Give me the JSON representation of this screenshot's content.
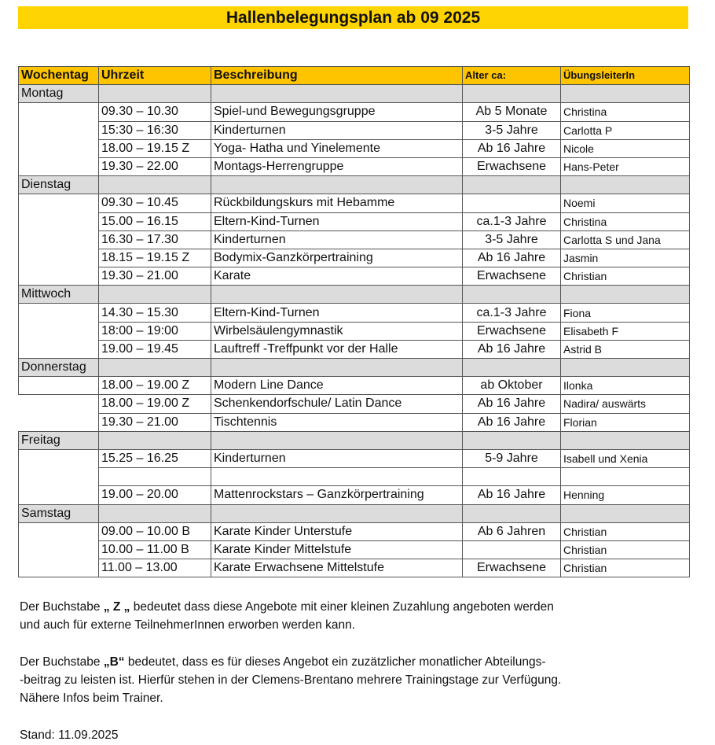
{
  "title": "Hallenbelegungsplan ab 09 2025",
  "headers": [
    "Wochentag",
    "Uhrzeit",
    "Beschreibung",
    "Alter ca:",
    "ÜbungsleiterIn"
  ],
  "days": [
    {
      "name": "Montag",
      "rows": [
        [
          "09.30 – 10.30",
          "Spiel-und Bewegungsgruppe",
          "Ab 5 Monate",
          "Christina"
        ],
        [
          "15:30 – 16:30",
          "Kinderturnen",
          "3-5 Jahre",
          "Carlotta P"
        ],
        [
          "18.00 – 19.15  Z",
          "Yoga- Hatha und Yinelemente",
          "Ab 16 Jahre",
          "Nicole"
        ],
        [
          "19.30 – 22.00",
          "Montags-Herrengruppe",
          "Erwachsene",
          "Hans-Peter"
        ]
      ]
    },
    {
      "name": "Dienstag",
      "rows": [
        [
          "09.30 – 10.45",
          "Rückbildungskurs mit Hebamme",
          "",
          "Noemi"
        ],
        [
          "15.00 – 16.15",
          "Eltern-Kind-Turnen",
          "ca.1-3 Jahre",
          "Christina"
        ],
        [
          "16.30 – 17.30",
          "Kinderturnen",
          "3-5 Jahre",
          "Carlotta S und Jana"
        ],
        [
          "18.15 – 19.15 Z",
          "Bodymix-Ganzkörpertraining",
          "Ab 16 Jahre",
          "Jasmin"
        ],
        [
          "19.30 – 21.00",
          "Karate",
          "Erwachsene",
          "Christian"
        ]
      ]
    },
    {
      "name": "Mittwoch",
      "rows": [
        [
          "14.30 – 15.30",
          "Eltern-Kind-Turnen",
          "ca.1-3 Jahre",
          "Fiona"
        ],
        [
          "18:00 – 19:00",
          "Wirbelsäulengymnastik",
          "Erwachsene",
          "Elisabeth F"
        ],
        [
          "19.00 – 19.45",
          "Lauftreff -Treffpunkt vor der Halle",
          "Ab 16 Jahre",
          "Astrid B"
        ]
      ]
    },
    {
      "name": "Donnerstag",
      "rows": [
        [
          "18.00 – 19.00 Z",
          "Modern Line Dance",
          "ab Oktober",
          "Ilonka"
        ],
        [
          "18.00 – 19.00 Z",
          "Schenkendorfschule/ Latin Dance",
          "Ab 16 Jahre",
          "Nadira/ auswärts"
        ],
        [
          "19.30 – 21.00",
          "Tischtennis",
          "Ab 16 Jahre",
          "Florian"
        ]
      ]
    },
    {
      "name": "Freitag",
      "rows": [
        [
          "15.25 – 16.25",
          "Kinderturnen",
          "5-9 Jahre",
          "Isabell und Xenia"
        ],
        [
          "",
          "",
          "",
          ""
        ],
        [
          "19.00 – 20.00",
          "Mattenrockstars – Ganzkörpertraining",
          "Ab 16 Jahre",
          "Henning"
        ]
      ]
    },
    {
      "name": "Samstag",
      "rows": [
        [
          "09.00 – 10.00 B",
          "Karate Kinder Unterstufe",
          "Ab 6 Jahren",
          "Christian"
        ],
        [
          "10.00 – 11.00 B",
          "Karate Kinder Mittelstufe",
          "",
          "Christian"
        ],
        [
          "11.00 – 13.00",
          "Karate Erwachsene Mittelstufe",
          "Erwachsene",
          "Christian"
        ]
      ]
    }
  ],
  "notes": {
    "z_line1_pre": "Der Buchstabe ",
    "z_letter": "„ Z „",
    "z_line1_post": " bedeutet dass diese Angebote mit einer kleinen Zuzahlung angeboten werden",
    "z_line2": "und auch für externe TeilnehmerInnen erworben werden kann.",
    "b_line1_pre": "Der Buchstabe ",
    "b_letter": "„B“",
    "b_line1_post": " bedeutet, dass es für dieses Angebot ein zuzätzlicher monatlicher Abteilungs-",
    "b_line2": "-beitrag zu leisten ist. Hierfür stehen in der Clemens-Brentano mehrere Trainingstage zur Verfügung.",
    "b_line3": "Nähere Infos beim Trainer.",
    "stand": "Stand: 11.09.2025"
  },
  "colors": {
    "title_bg": "#FFD400",
    "header_bg": "#FFC400",
    "day_row_bg": "#DCDCDC"
  }
}
